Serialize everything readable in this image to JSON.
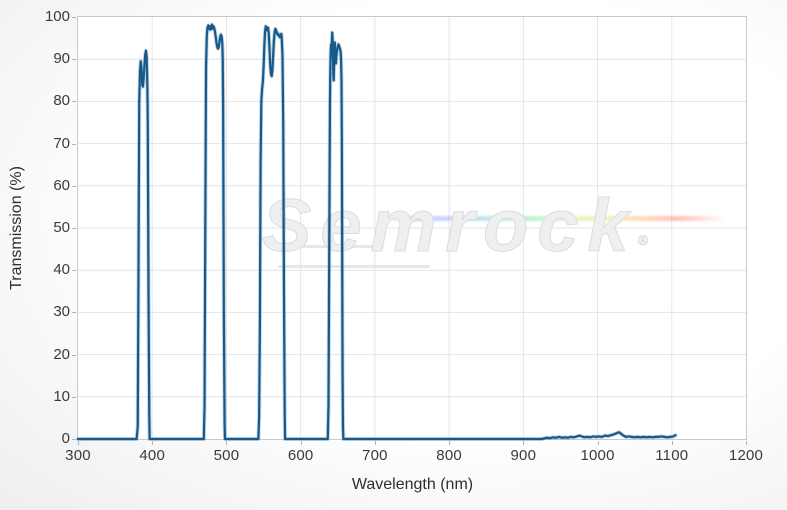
{
  "watermark": {
    "text": "Semrock",
    "registered_mark": "®"
  },
  "chart_data": {
    "type": "line",
    "title": "",
    "xlabel": "Wavelength (nm)",
    "ylabel": "Transmission (%)",
    "xlim": [
      300,
      1200
    ],
    "ylim": [
      0,
      100
    ],
    "xticks": [
      300,
      400,
      500,
      600,
      700,
      800,
      900,
      1000,
      1100,
      1200
    ],
    "yticks": [
      0,
      10,
      20,
      30,
      40,
      50,
      60,
      70,
      80,
      90,
      100
    ],
    "grid": true,
    "legend_position": "none",
    "line_color": "#17598a",
    "grid_color": "#e4e4e4",
    "plot_border_color": "#c9c9c9",
    "series": [
      {
        "name": "Transmission (%)",
        "points": [
          [
            300,
            0
          ],
          [
            340,
            0
          ],
          [
            379,
            0
          ],
          [
            380.5,
            3
          ],
          [
            381.5,
            40
          ],
          [
            382.5,
            80
          ],
          [
            383.5,
            87
          ],
          [
            384.5,
            89.5
          ],
          [
            385.5,
            88
          ],
          [
            386.5,
            84
          ],
          [
            387.5,
            83.5
          ],
          [
            388.5,
            85.5
          ],
          [
            389.5,
            88.5
          ],
          [
            390.5,
            91
          ],
          [
            391.5,
            92
          ],
          [
            392.5,
            90.5
          ],
          [
            393,
            87
          ],
          [
            393.5,
            83
          ],
          [
            394,
            75
          ],
          [
            395,
            35
          ],
          [
            396,
            6
          ],
          [
            396.5,
            0
          ],
          [
            420,
            0
          ],
          [
            450,
            0
          ],
          [
            469.5,
            0
          ],
          [
            470.5,
            8
          ],
          [
            471.5,
            50
          ],
          [
            472.5,
            88
          ],
          [
            473.5,
            95.5
          ],
          [
            474.5,
            97.5
          ],
          [
            475.5,
            98
          ],
          [
            476.5,
            97.2
          ],
          [
            477.5,
            97.8
          ],
          [
            478.5,
            97
          ],
          [
            479.5,
            97.6
          ],
          [
            480.5,
            98.2
          ],
          [
            481.5,
            97.2
          ],
          [
            482.5,
            97.8
          ],
          [
            483.5,
            97.4
          ],
          [
            484.5,
            96.6
          ],
          [
            485.5,
            95.4
          ],
          [
            486.5,
            94
          ],
          [
            487.5,
            93
          ],
          [
            488.5,
            92.5
          ],
          [
            489.5,
            92.8
          ],
          [
            490.5,
            94
          ],
          [
            491.5,
            95.2
          ],
          [
            492.5,
            95.8
          ],
          [
            493.5,
            95.4
          ],
          [
            494.5,
            93.5
          ],
          [
            495,
            90
          ],
          [
            495.5,
            80
          ],
          [
            496.5,
            30
          ],
          [
            497.5,
            4
          ],
          [
            498,
            0
          ],
          [
            520,
            0
          ],
          [
            543,
            0
          ],
          [
            544,
            5
          ],
          [
            545,
            25
          ],
          [
            546,
            65
          ],
          [
            547,
            80
          ],
          [
            548,
            83
          ],
          [
            549,
            84.5
          ],
          [
            550,
            88
          ],
          [
            551,
            93
          ],
          [
            552,
            96.5
          ],
          [
            553,
            97.8
          ],
          [
            554,
            97.2
          ],
          [
            555,
            96.8
          ],
          [
            556,
            97.5
          ],
          [
            557,
            96.2
          ],
          [
            558,
            92.5
          ],
          [
            559,
            88.5
          ],
          [
            560,
            86.5
          ],
          [
            561,
            86
          ],
          [
            562,
            87.5
          ],
          [
            563,
            91
          ],
          [
            564,
            94.5
          ],
          [
            565,
            96.5
          ],
          [
            566,
            97.2
          ],
          [
            567,
            96.8
          ],
          [
            568,
            96.2
          ],
          [
            569,
            95.8
          ],
          [
            570,
            96
          ],
          [
            571,
            95.5
          ],
          [
            572,
            95.2
          ],
          [
            573,
            95.6
          ],
          [
            574,
            96
          ],
          [
            574.5,
            95
          ],
          [
            575.5,
            91
          ],
          [
            576.5,
            75
          ],
          [
            577.5,
            35
          ],
          [
            578.5,
            6
          ],
          [
            579,
            0
          ],
          [
            600,
            0
          ],
          [
            620,
            0
          ],
          [
            636.5,
            0
          ],
          [
            637.5,
            8
          ],
          [
            638.5,
            45
          ],
          [
            639.5,
            80
          ],
          [
            640,
            88
          ],
          [
            640.5,
            92
          ],
          [
            641,
            93.5
          ],
          [
            641.5,
            91.5
          ],
          [
            642,
            94
          ],
          [
            642.5,
            96.3
          ],
          [
            643,
            95
          ],
          [
            643.5,
            90.5
          ],
          [
            644,
            86.5
          ],
          [
            644.5,
            85
          ],
          [
            645,
            88.5
          ],
          [
            645.5,
            92.5
          ],
          [
            646,
            94
          ],
          [
            646.5,
            92
          ],
          [
            647,
            89.5
          ],
          [
            647.5,
            89
          ],
          [
            648,
            90.5
          ],
          [
            649,
            92
          ],
          [
            650,
            93
          ],
          [
            651,
            93.5
          ],
          [
            652,
            93
          ],
          [
            653,
            92.5
          ],
          [
            654,
            91.5
          ],
          [
            654.5,
            89.5
          ],
          [
            655,
            85
          ],
          [
            655.5,
            70
          ],
          [
            656,
            40
          ],
          [
            656.5,
            14
          ],
          [
            657,
            3
          ],
          [
            657.5,
            0
          ],
          [
            680,
            0
          ],
          [
            720,
            0
          ],
          [
            760,
            0
          ],
          [
            800,
            0
          ],
          [
            850,
            0
          ],
          [
            900,
            0
          ],
          [
            925,
            0
          ],
          [
            932,
            0.3
          ],
          [
            936,
            0.2
          ],
          [
            940,
            0.4
          ],
          [
            944,
            0.3
          ],
          [
            948,
            0.5
          ],
          [
            952,
            0.3
          ],
          [
            956,
            0.4
          ],
          [
            960,
            0.3
          ],
          [
            964,
            0.5
          ],
          [
            968,
            0.4
          ],
          [
            972,
            0.6
          ],
          [
            976,
            0.8
          ],
          [
            979,
            0.6
          ],
          [
            982,
            0.4
          ],
          [
            986,
            0.5
          ],
          [
            990,
            0.4
          ],
          [
            994,
            0.6
          ],
          [
            998,
            0.5
          ],
          [
            1002,
            0.6
          ],
          [
            1006,
            0.5
          ],
          [
            1010,
            0.8
          ],
          [
            1014,
            0.7
          ],
          [
            1018,
            0.9
          ],
          [
            1022,
            1.1
          ],
          [
            1026,
            1.4
          ],
          [
            1029,
            1.6
          ],
          [
            1032,
            1.2
          ],
          [
            1035,
            0.8
          ],
          [
            1038,
            0.5
          ],
          [
            1042,
            0.6
          ],
          [
            1046,
            0.5
          ],
          [
            1050,
            0.4
          ],
          [
            1054,
            0.5
          ],
          [
            1058,
            0.4
          ],
          [
            1062,
            0.5
          ],
          [
            1066,
            0.4
          ],
          [
            1070,
            0.5
          ],
          [
            1074,
            0.4
          ],
          [
            1078,
            0.5
          ],
          [
            1082,
            0.5
          ],
          [
            1086,
            0.6
          ],
          [
            1090,
            0.5
          ],
          [
            1094,
            0.4
          ],
          [
            1098,
            0.5
          ],
          [
            1102,
            0.6
          ],
          [
            1105,
            0.9
          ]
        ]
      }
    ]
  }
}
